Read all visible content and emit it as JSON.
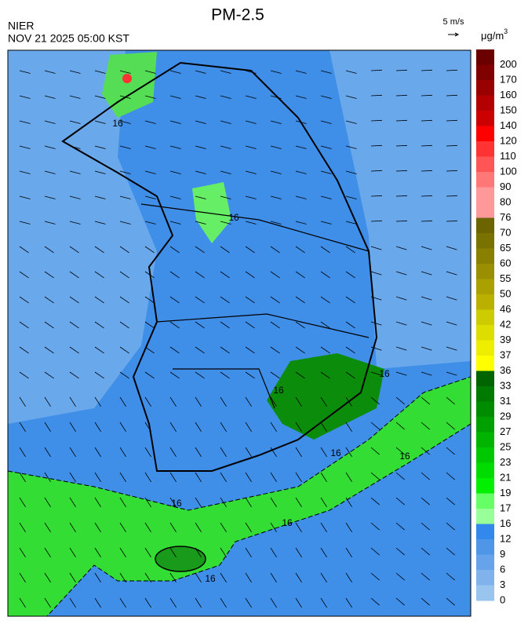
{
  "header": {
    "title": "PM-2.5",
    "agency": "NIER",
    "time": "NOV 21 2025 05:00 KST",
    "wind_ref": "5 m/s"
  },
  "legend": {
    "unit": "μg/m",
    "unit_power": "3",
    "levels": [
      {
        "label": 200,
        "color": "#6b0000"
      },
      {
        "label": 170,
        "color": "#800000"
      },
      {
        "label": 160,
        "color": "#990000"
      },
      {
        "label": 150,
        "color": "#b30000"
      },
      {
        "label": 140,
        "color": "#cc0000"
      },
      {
        "label": 120,
        "color": "#ff0000"
      },
      {
        "label": 110,
        "color": "#ff3333"
      },
      {
        "label": 100,
        "color": "#ff5555"
      },
      {
        "label": 90,
        "color": "#ff7777"
      },
      {
        "label": 80,
        "color": "#ff9999"
      },
      {
        "label": 76,
        "color": "#ff9999"
      },
      {
        "label": 70,
        "color": "#6b6400"
      },
      {
        "label": 65,
        "color": "#7a7200"
      },
      {
        "label": 60,
        "color": "#8a8000"
      },
      {
        "label": 55,
        "color": "#9a8f00"
      },
      {
        "label": 50,
        "color": "#aaa000"
      },
      {
        "label": 46,
        "color": "#bbb000"
      },
      {
        "label": 42,
        "color": "#cccc00"
      },
      {
        "label": 39,
        "color": "#dddd00"
      },
      {
        "label": 37,
        "color": "#eeee00"
      },
      {
        "label": 36,
        "color": "#ffff00"
      },
      {
        "label": 33,
        "color": "#006400"
      },
      {
        "label": 31,
        "color": "#007a00"
      },
      {
        "label": 29,
        "color": "#008c00"
      },
      {
        "label": 27,
        "color": "#00a000"
      },
      {
        "label": 25,
        "color": "#00b400"
      },
      {
        "label": 23,
        "color": "#00c800"
      },
      {
        "label": 21,
        "color": "#00dc00"
      },
      {
        "label": 19,
        "color": "#00f000"
      },
      {
        "label": 17,
        "color": "#66ff66"
      },
      {
        "label": 16,
        "color": "#99ff99"
      },
      {
        "label": 12,
        "color": "#3388ee"
      },
      {
        "label": 9,
        "color": "#4f95e8"
      },
      {
        "label": 6,
        "color": "#66a3ea"
      },
      {
        "label": 3,
        "color": "#80b3ec"
      },
      {
        "label": 0,
        "color": "#99c4ee"
      }
    ]
  },
  "map": {
    "contour_labels": [
      16,
      16,
      16,
      16,
      16,
      16,
      16,
      16,
      16
    ]
  }
}
